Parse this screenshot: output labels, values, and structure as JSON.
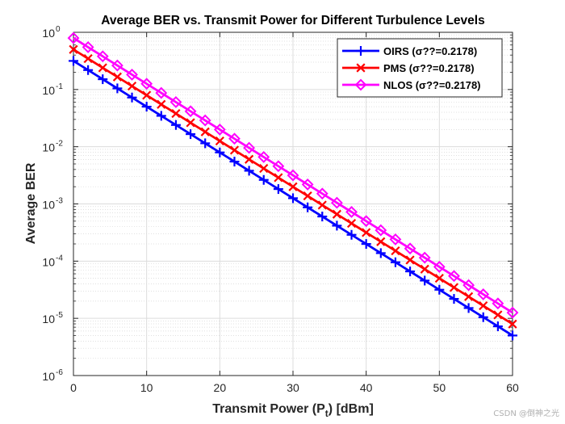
{
  "chart_data": {
    "type": "line",
    "title": "Average BER vs. Transmit Power for Different Turbulence Levels",
    "xlabel": "Transmit Power (P_t) [dBm]",
    "xlabel_main": "Transmit Power (P",
    "xlabel_sub": "t",
    "xlabel_end": ") [dBm]",
    "ylabel": "Average BER",
    "xlim": [
      0,
      60
    ],
    "ylim_exp": [
      -6,
      0
    ],
    "yscale": "log",
    "grid": true,
    "legend_position": "top-right",
    "x_ticks": [
      "0",
      "10",
      "20",
      "30",
      "40",
      "50",
      "60"
    ],
    "y_ticks": [
      {
        "base": "10",
        "exp": "0"
      },
      {
        "base": "10",
        "exp": "-1"
      },
      {
        "base": "10",
        "exp": "-2"
      },
      {
        "base": "10",
        "exp": "-3"
      },
      {
        "base": "10",
        "exp": "-4"
      },
      {
        "base": "10",
        "exp": "-5"
      },
      {
        "base": "10",
        "exp": "-6"
      }
    ],
    "x": [
      0,
      2,
      4,
      6,
      8,
      10,
      12,
      14,
      16,
      18,
      20,
      22,
      24,
      26,
      28,
      30,
      32,
      34,
      36,
      38,
      40,
      42,
      44,
      46,
      48,
      50,
      52,
      54,
      56,
      58,
      60
    ],
    "series": [
      {
        "name": "OIRS (σ??=0.2178)",
        "color": "#0000ff",
        "marker": "plus",
        "log10_start": -0.5,
        "log10_end": -5.3
      },
      {
        "name": "PMS (σ??=0.2178)",
        "color": "#ff0000",
        "marker": "x",
        "log10_start": -0.3,
        "log10_end": -5.1
      },
      {
        "name": "NLOS (σ??=0.2178)",
        "color": "#ff00ff",
        "marker": "diamond",
        "log10_start": -0.1,
        "log10_end": -4.9
      }
    ]
  },
  "watermark": "CSDN @倒神之光"
}
